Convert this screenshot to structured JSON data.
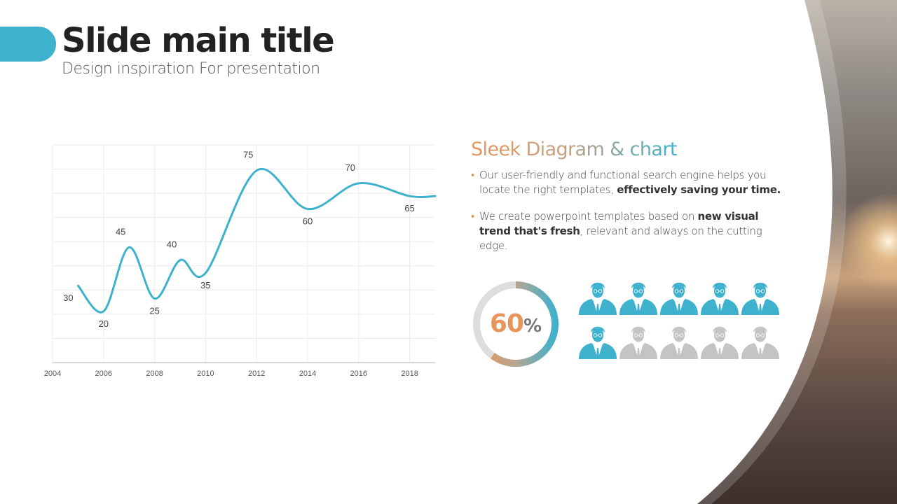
{
  "header": {
    "title": "Slide main title",
    "subtitle": "Design inspiration For presentation"
  },
  "chart_data": {
    "type": "line",
    "x": [
      2005,
      2006,
      2007,
      2008,
      2009,
      2010,
      2012,
      2014,
      2016,
      2018,
      2019
    ],
    "values": [
      30,
      20,
      45,
      25,
      40,
      35,
      75,
      60,
      70,
      65,
      65
    ],
    "data_labels": [
      "30",
      "20",
      "45",
      "25",
      "40",
      "35",
      "75",
      "60",
      "70",
      "65",
      ""
    ],
    "xticks": [
      "2004",
      "2006",
      "2008",
      "2010",
      "2012",
      "2014",
      "2016",
      "2018"
    ],
    "xlim": [
      2004,
      2019
    ],
    "ylim": [
      0,
      85
    ],
    "grid": true,
    "title": "",
    "xlabel": "",
    "ylabel": "",
    "line_color": "#3eb1cd"
  },
  "info": {
    "heading": "Sleek Diagram & chart",
    "bullets": [
      {
        "text": "Our user-friendly and functional search engine helps you locate the right templates, ",
        "bold": "effectively saving your time.",
        "after": ""
      },
      {
        "text": "We create powerpoint templates based on ",
        "bold": "new visual trend that's fresh",
        "after": ", relevant and always on the cutting edge."
      }
    ]
  },
  "stats": {
    "percent": 0.6,
    "percent_number": "60",
    "percent_sign": "%",
    "people_total": 10,
    "people_highlighted": 6
  },
  "colors": {
    "accent": "#3eb1cd",
    "orange": "#e8955c",
    "grey": "#c4c4c4",
    "dark_text": "#222222"
  },
  "icons": {
    "person": "businessman-icon"
  }
}
